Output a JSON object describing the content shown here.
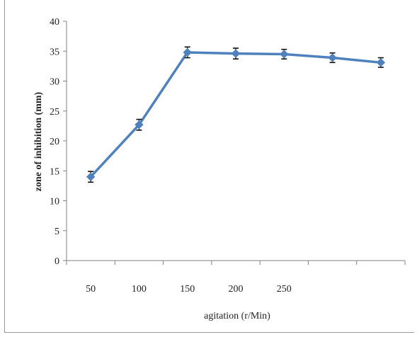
{
  "chart_data": {
    "type": "line",
    "title": "",
    "xlabel": "agitation (r/Min)",
    "ylabel": "zone of inhibition (mm)",
    "x_tick_labels": [
      "50",
      "100",
      "150",
      "200",
      "250",
      "",
      ""
    ],
    "y_ticks": [
      0,
      5,
      10,
      15,
      20,
      25,
      30,
      35,
      40
    ],
    "ylim": [
      0,
      40
    ],
    "grid": false,
    "legend": "none",
    "series": [
      {
        "values": [
          14.0,
          22.7,
          34.8,
          34.6,
          34.5,
          33.9,
          33.1
        ],
        "error": [
          0.9,
          0.9,
          0.9,
          0.9,
          0.8,
          0.8,
          0.8
        ],
        "color": "#4f81bd"
      }
    ]
  }
}
